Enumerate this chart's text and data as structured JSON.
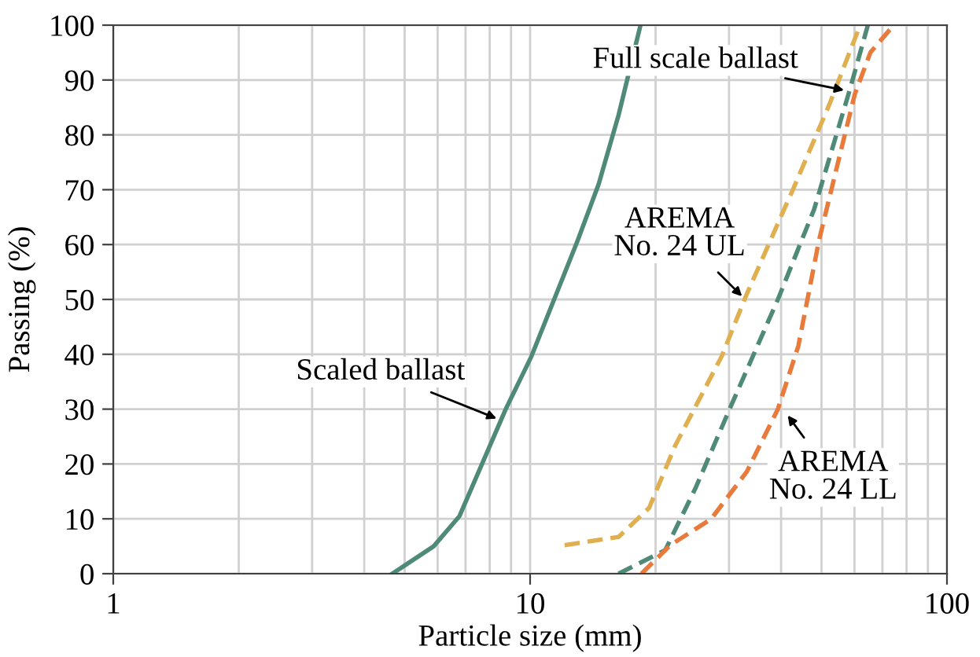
{
  "chart_data": {
    "type": "line",
    "xlabel": "Particle size (mm)",
    "ylabel": "Passing (%)",
    "log": "x",
    "xlim": [
      1,
      100
    ],
    "ylim": [
      0,
      100
    ],
    "xticks": [
      1,
      {
        "value": 2,
        "label": null
      },
      {
        "value": 3,
        "label": null
      },
      {
        "value": 4,
        "label": null
      },
      {
        "value": 5,
        "label": null
      },
      {
        "value": 6,
        "label": null
      },
      {
        "value": 7,
        "label": null
      },
      {
        "value": 8,
        "label": null
      },
      {
        "value": 9,
        "label": null
      },
      10,
      {
        "value": 20,
        "label": null
      },
      {
        "value": 30,
        "label": null
      },
      {
        "value": 40,
        "label": null
      },
      {
        "value": 50,
        "label": null
      },
      {
        "value": 60,
        "label": null
      },
      {
        "value": 70,
        "label": null
      },
      {
        "value": 80,
        "label": null
      },
      {
        "value": 90,
        "label": null
      },
      100
    ],
    "yticks": [
      0,
      10,
      20,
      30,
      40,
      50,
      60,
      70,
      80,
      90,
      100
    ],
    "grid": true,
    "marker": "none",
    "series": [
      {
        "color": "#4f8a78",
        "line_style": "solid",
        "x": [
          4.67,
          5.87,
          6.77,
          8.74,
          10.07,
          13.0,
          14.6,
          16.3,
          18.4
        ],
        "values": [
          0,
          5,
          10.5,
          30,
          39.6,
          60.7,
          71,
          83.6,
          100
        ]
      },
      {
        "color": "#e0b050",
        "line_style": "dashed",
        "x": [
          12.1,
          16.3,
          19.3,
          22.3,
          28.8,
          33.1,
          42.8,
          52.2,
          61.9
        ],
        "values": [
          5.2,
          6.7,
          12,
          23.4,
          39.6,
          51,
          70.2,
          85.5,
          100
        ]
      },
      {
        "color": "#4f8a78",
        "line_style": "dashed",
        "x": [
          16.3,
          21.1,
          25,
          30.5,
          39.3,
          48,
          53.7,
          58.5,
          64.6
        ],
        "values": [
          0,
          4.3,
          15.8,
          31,
          50,
          66.4,
          78.8,
          88.3,
          100
        ]
      },
      {
        "color": "#e87a3c",
        "line_style": "dashed",
        "x": [
          18.5,
          21.7,
          27.2,
          33.1,
          39.3,
          44,
          49.3,
          55.2,
          60.1,
          65.5,
          74.5
        ],
        "values": [
          0,
          5.2,
          10,
          18.6,
          30,
          41.5,
          60.7,
          76,
          87.4,
          95,
          100
        ]
      }
    ],
    "annotations": [
      {
        "text": "Scaled ballast",
        "x": 8.5,
        "y": 28
      },
      {
        "text": "Full scale ballast",
        "x": 58,
        "y": 88
      },
      {
        "text": "AREMA\nNo. 24 UL",
        "x": 32.8,
        "y": 50
      },
      {
        "text": "AREMA\nNo. 24 LL",
        "x": 40.9,
        "y": 29.5
      }
    ]
  }
}
